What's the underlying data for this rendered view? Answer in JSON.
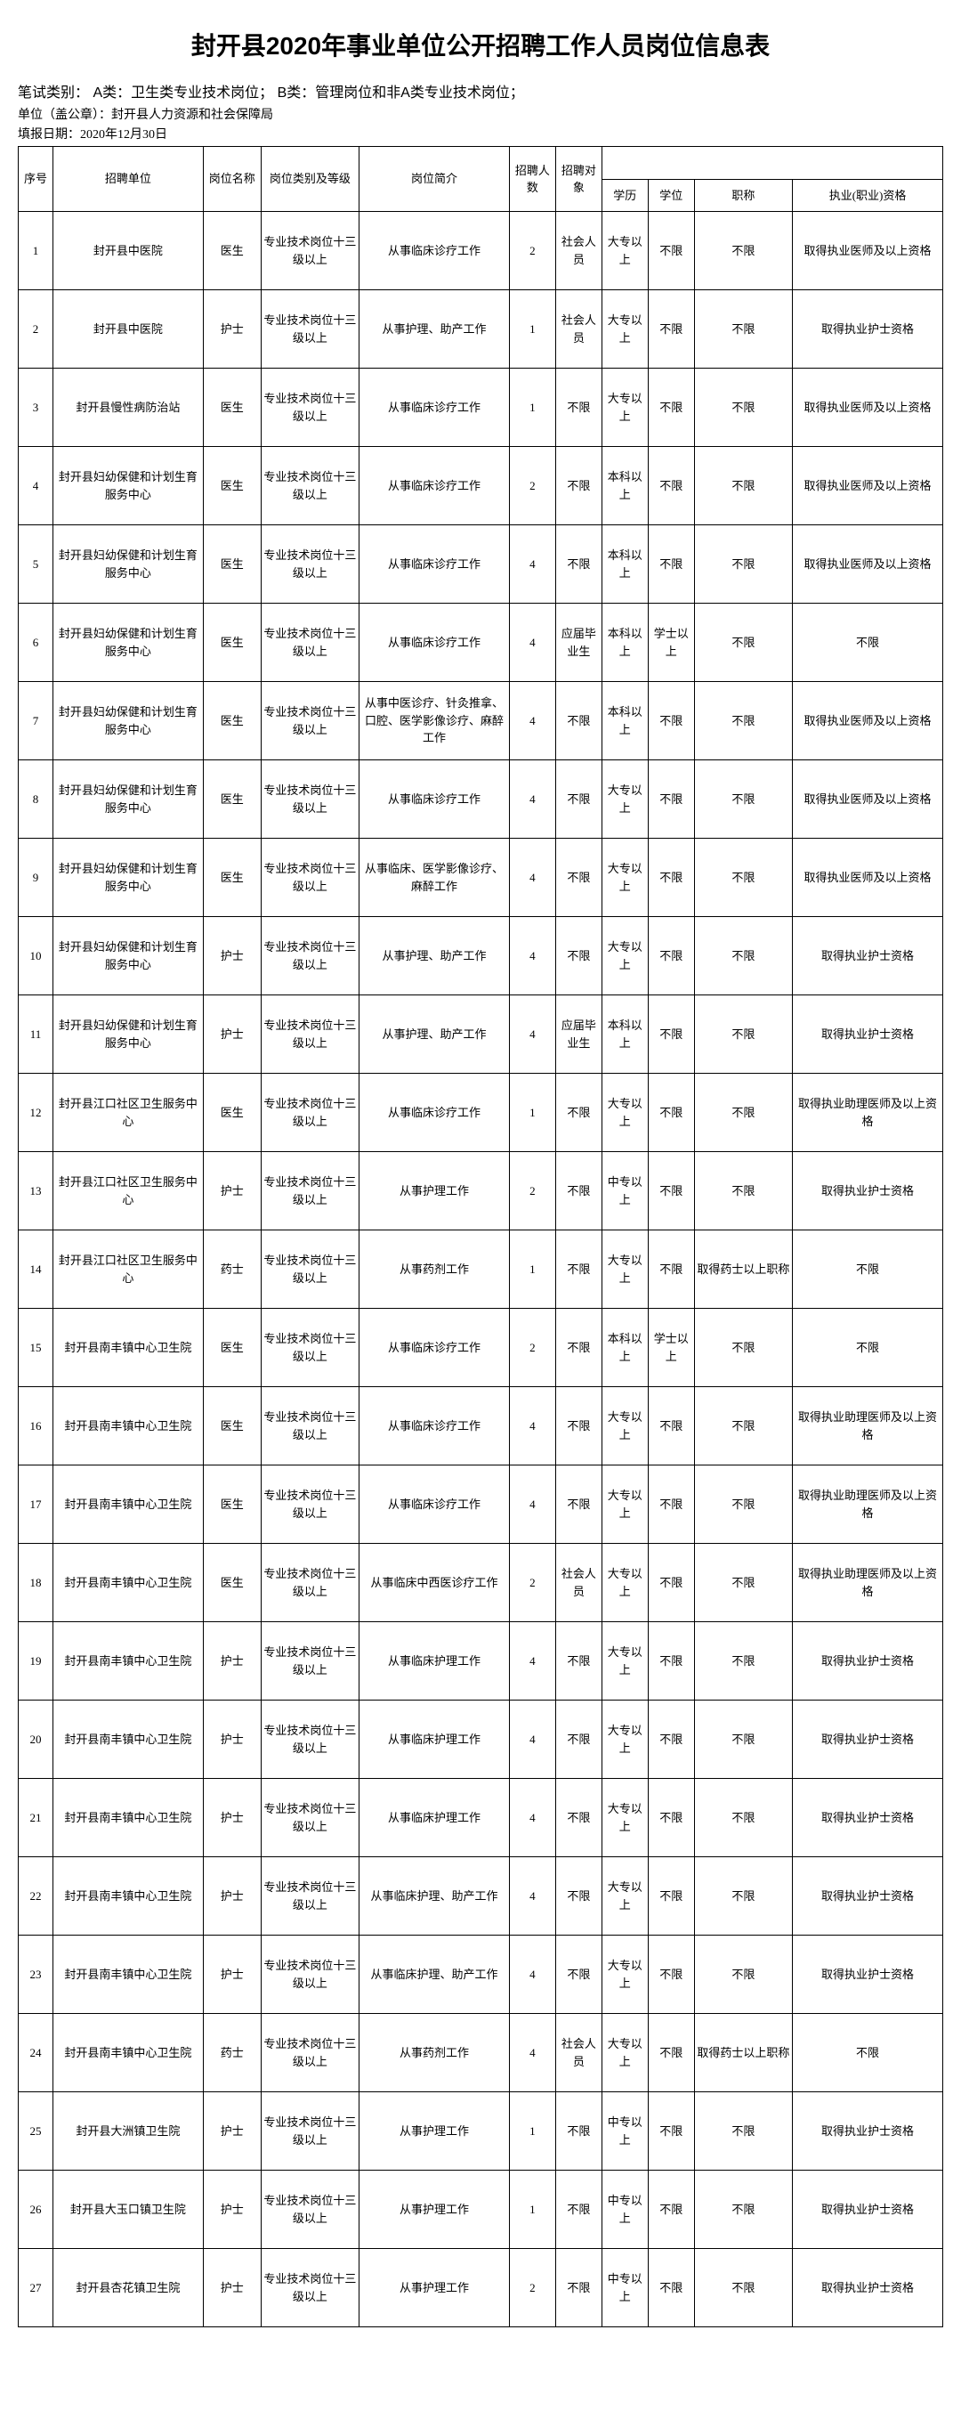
{
  "title": "封开县2020年事业单位公开招聘工作人员岗位信息表",
  "exam_type_line": "笔试类别：  A类：卫生类专业技术岗位；      B类：管理岗位和非A类专业技术岗位；",
  "org_line": "单位（盖公章）：封开县人力资源和社会保障局",
  "date_line": "填报日期：2020年12月30日",
  "headers": {
    "seq": "序号",
    "unit": "招聘单位",
    "post": "岗位名称",
    "cat": "岗位类别及等级",
    "desc": "岗位简介",
    "num": "招聘人数",
    "target": "招聘对象",
    "edu": "学历",
    "degree": "学位",
    "title": "职称",
    "qual": "执业(职业)资格"
  },
  "rows": [
    {
      "seq": "1",
      "unit": "封开县中医院",
      "post": "医生",
      "cat": "专业技术岗位十三级以上",
      "desc": "从事临床诊疗工作",
      "num": "2",
      "target": "社会人员",
      "edu": "大专以上",
      "degree": "不限",
      "title": "不限",
      "qual": "取得执业医师及以上资格"
    },
    {
      "seq": "2",
      "unit": "封开县中医院",
      "post": "护士",
      "cat": "专业技术岗位十三级以上",
      "desc": "从事护理、助产工作",
      "num": "1",
      "target": "社会人员",
      "edu": "大专以上",
      "degree": "不限",
      "title": "不限",
      "qual": "取得执业护士资格"
    },
    {
      "seq": "3",
      "unit": "封开县慢性病防治站",
      "post": "医生",
      "cat": "专业技术岗位十三级以上",
      "desc": "从事临床诊疗工作",
      "num": "1",
      "target": "不限",
      "edu": "大专以上",
      "degree": "不限",
      "title": "不限",
      "qual": "取得执业医师及以上资格"
    },
    {
      "seq": "4",
      "unit": "封开县妇幼保健和计划生育服务中心",
      "post": "医生",
      "cat": "专业技术岗位十三级以上",
      "desc": "从事临床诊疗工作",
      "num": "2",
      "target": "不限",
      "edu": "本科以上",
      "degree": "不限",
      "title": "不限",
      "qual": "取得执业医师及以上资格"
    },
    {
      "seq": "5",
      "unit": "封开县妇幼保健和计划生育服务中心",
      "post": "医生",
      "cat": "专业技术岗位十三级以上",
      "desc": "从事临床诊疗工作",
      "num": "4",
      "target": "不限",
      "edu": "本科以上",
      "degree": "不限",
      "title": "不限",
      "qual": "取得执业医师及以上资格"
    },
    {
      "seq": "6",
      "unit": "封开县妇幼保健和计划生育服务中心",
      "post": "医生",
      "cat": "专业技术岗位十三级以上",
      "desc": "从事临床诊疗工作",
      "num": "4",
      "target": "应届毕业生",
      "edu": "本科以上",
      "degree": "学士以上",
      "title": "不限",
      "qual": "不限"
    },
    {
      "seq": "7",
      "unit": "封开县妇幼保健和计划生育服务中心",
      "post": "医生",
      "cat": "专业技术岗位十三级以上",
      "desc": "从事中医诊疗、针灸推拿、口腔、医学影像诊疗、麻醉工作",
      "num": "4",
      "target": "不限",
      "edu": "本科以上",
      "degree": "不限",
      "title": "不限",
      "qual": "取得执业医师及以上资格"
    },
    {
      "seq": "8",
      "unit": "封开县妇幼保健和计划生育服务中心",
      "post": "医生",
      "cat": "专业技术岗位十三级以上",
      "desc": "从事临床诊疗工作",
      "num": "4",
      "target": "不限",
      "edu": "大专以上",
      "degree": "不限",
      "title": "不限",
      "qual": "取得执业医师及以上资格"
    },
    {
      "seq": "9",
      "unit": "封开县妇幼保健和计划生育服务中心",
      "post": "医生",
      "cat": "专业技术岗位十三级以上",
      "desc": "从事临床、医学影像诊疗、麻醉工作",
      "num": "4",
      "target": "不限",
      "edu": "大专以上",
      "degree": "不限",
      "title": "不限",
      "qual": "取得执业医师及以上资格"
    },
    {
      "seq": "10",
      "unit": "封开县妇幼保健和计划生育服务中心",
      "post": "护士",
      "cat": "专业技术岗位十三级以上",
      "desc": "从事护理、助产工作",
      "num": "4",
      "target": "不限",
      "edu": "大专以上",
      "degree": "不限",
      "title": "不限",
      "qual": "取得执业护士资格"
    },
    {
      "seq": "11",
      "unit": "封开县妇幼保健和计划生育服务中心",
      "post": "护士",
      "cat": "专业技术岗位十三级以上",
      "desc": "从事护理、助产工作",
      "num": "4",
      "target": "应届毕业生",
      "edu": "本科以上",
      "degree": "不限",
      "title": "不限",
      "qual": "取得执业护士资格"
    },
    {
      "seq": "12",
      "unit": "封开县江口社区卫生服务中心",
      "post": "医生",
      "cat": "专业技术岗位十三级以上",
      "desc": "从事临床诊疗工作",
      "num": "1",
      "target": "不限",
      "edu": "大专以上",
      "degree": "不限",
      "title": "不限",
      "qual": "取得执业助理医师及以上资格"
    },
    {
      "seq": "13",
      "unit": "封开县江口社区卫生服务中心",
      "post": "护士",
      "cat": "专业技术岗位十三级以上",
      "desc": "从事护理工作",
      "num": "2",
      "target": "不限",
      "edu": "中专以上",
      "degree": "不限",
      "title": "不限",
      "qual": "取得执业护士资格"
    },
    {
      "seq": "14",
      "unit": "封开县江口社区卫生服务中心",
      "post": "药士",
      "cat": "专业技术岗位十三级以上",
      "desc": "从事药剂工作",
      "num": "1",
      "target": "不限",
      "edu": "大专以上",
      "degree": "不限",
      "title": "取得药士以上职称",
      "qual": "不限"
    },
    {
      "seq": "15",
      "unit": "封开县南丰镇中心卫生院",
      "post": "医生",
      "cat": "专业技术岗位十三级以上",
      "desc": "从事临床诊疗工作",
      "num": "2",
      "target": "不限",
      "edu": "本科以上",
      "degree": "学士以上",
      "title": "不限",
      "qual": "不限"
    },
    {
      "seq": "16",
      "unit": "封开县南丰镇中心卫生院",
      "post": "医生",
      "cat": "专业技术岗位十三级以上",
      "desc": "从事临床诊疗工作",
      "num": "4",
      "target": "不限",
      "edu": "大专以上",
      "degree": "不限",
      "title": "不限",
      "qual": "取得执业助理医师及以上资格"
    },
    {
      "seq": "17",
      "unit": "封开县南丰镇中心卫生院",
      "post": "医生",
      "cat": "专业技术岗位十三级以上",
      "desc": "从事临床诊疗工作",
      "num": "4",
      "target": "不限",
      "edu": "大专以上",
      "degree": "不限",
      "title": "不限",
      "qual": "取得执业助理医师及以上资格"
    },
    {
      "seq": "18",
      "unit": "封开县南丰镇中心卫生院",
      "post": "医生",
      "cat": "专业技术岗位十三级以上",
      "desc": "从事临床中西医诊疗工作",
      "num": "2",
      "target": "社会人员",
      "edu": "大专以上",
      "degree": "不限",
      "title": "不限",
      "qual": "取得执业助理医师及以上资格"
    },
    {
      "seq": "19",
      "unit": "封开县南丰镇中心卫生院",
      "post": "护士",
      "cat": "专业技术岗位十三级以上",
      "desc": "从事临床护理工作",
      "num": "4",
      "target": "不限",
      "edu": "大专以上",
      "degree": "不限",
      "title": "不限",
      "qual": "取得执业护士资格"
    },
    {
      "seq": "20",
      "unit": "封开县南丰镇中心卫生院",
      "post": "护士",
      "cat": "专业技术岗位十三级以上",
      "desc": "从事临床护理工作",
      "num": "4",
      "target": "不限",
      "edu": "大专以上",
      "degree": "不限",
      "title": "不限",
      "qual": "取得执业护士资格"
    },
    {
      "seq": "21",
      "unit": "封开县南丰镇中心卫生院",
      "post": "护士",
      "cat": "专业技术岗位十三级以上",
      "desc": "从事临床护理工作",
      "num": "4",
      "target": "不限",
      "edu": "大专以上",
      "degree": "不限",
      "title": "不限",
      "qual": "取得执业护士资格"
    },
    {
      "seq": "22",
      "unit": "封开县南丰镇中心卫生院",
      "post": "护士",
      "cat": "专业技术岗位十三级以上",
      "desc": "从事临床护理、助产工作",
      "num": "4",
      "target": "不限",
      "edu": "大专以上",
      "degree": "不限",
      "title": "不限",
      "qual": "取得执业护士资格"
    },
    {
      "seq": "23",
      "unit": "封开县南丰镇中心卫生院",
      "post": "护士",
      "cat": "专业技术岗位十三级以上",
      "desc": "从事临床护理、助产工作",
      "num": "4",
      "target": "不限",
      "edu": "大专以上",
      "degree": "不限",
      "title": "不限",
      "qual": "取得执业护士资格"
    },
    {
      "seq": "24",
      "unit": "封开县南丰镇中心卫生院",
      "post": "药士",
      "cat": "专业技术岗位十三级以上",
      "desc": "从事药剂工作",
      "num": "4",
      "target": "社会人员",
      "edu": "大专以上",
      "degree": "不限",
      "title": "取得药士以上职称",
      "qual": "不限"
    },
    {
      "seq": "25",
      "unit": "封开县大洲镇卫生院",
      "post": "护士",
      "cat": "专业技术岗位十三级以上",
      "desc": "从事护理工作",
      "num": "1",
      "target": "不限",
      "edu": "中专以上",
      "degree": "不限",
      "title": "不限",
      "qual": "取得执业护士资格"
    },
    {
      "seq": "26",
      "unit": "封开县大玉口镇卫生院",
      "post": "护士",
      "cat": "专业技术岗位十三级以上",
      "desc": "从事护理工作",
      "num": "1",
      "target": "不限",
      "edu": "中专以上",
      "degree": "不限",
      "title": "不限",
      "qual": "取得执业护士资格"
    },
    {
      "seq": "27",
      "unit": "封开县杏花镇卫生院",
      "post": "护士",
      "cat": "专业技术岗位十三级以上",
      "desc": "从事护理工作",
      "num": "2",
      "target": "不限",
      "edu": "中专以上",
      "degree": "不限",
      "title": "不限",
      "qual": "取得执业护士资格"
    }
  ]
}
